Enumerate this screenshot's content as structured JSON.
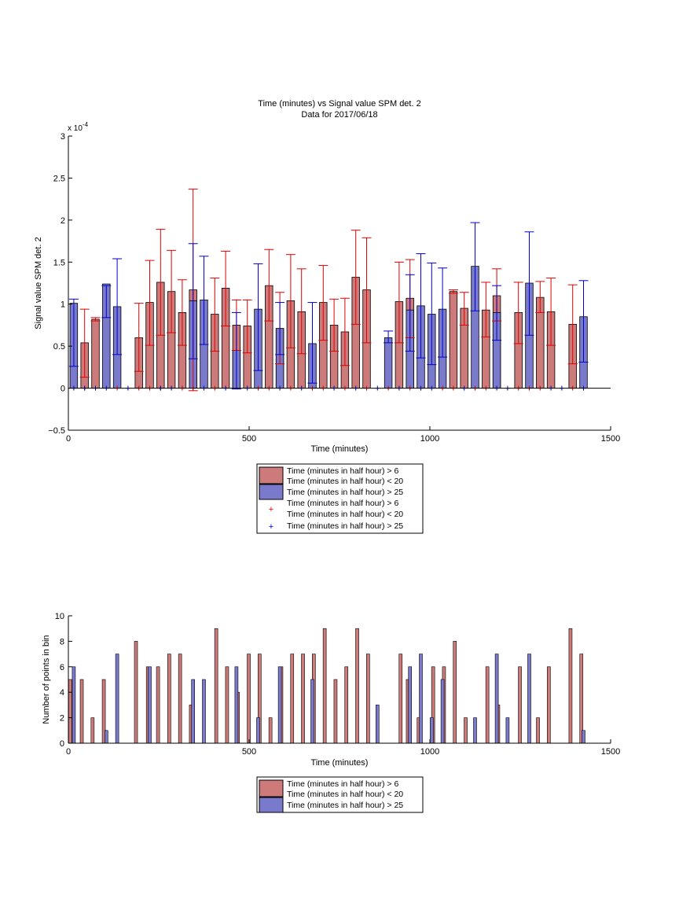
{
  "colors": {
    "red_bar": "#CC7A7A",
    "blue_bar": "#7A7ACC",
    "red_err": "#E00000",
    "blue_err": "#0000CC",
    "axis": "#000000"
  },
  "chart_data": [
    {
      "type": "bar",
      "title": "Time (minutes) vs Signal value SPM det. 2",
      "subtitle": "Data for 2017/06/18",
      "xlabel": "Time (minutes)",
      "ylabel": "Signal value SPM det. 2",
      "xlim": [
        0,
        1500
      ],
      "ylim": [
        -0.5,
        3
      ],
      "y_exponent_label": "x 10",
      "y_exponent_power": "-4",
      "xticks": [
        "0",
        "500",
        "1000",
        "1500"
      ],
      "yticks": [
        "−0.5",
        "0",
        "0.5",
        "1",
        "1.5",
        "2",
        "2.5",
        "3"
      ],
      "grid": false,
      "legend_position": "below",
      "legend": [
        {
          "symbol": "bar",
          "color": "red",
          "label": [
            "Time (minutes in half hour) > 6",
            "Time (minutes in half hour) < 20"
          ]
        },
        {
          "symbol": "bar",
          "color": "blue",
          "label": [
            "Time (minutes in half hour) > 25"
          ]
        },
        {
          "symbol": "plus",
          "color": "red",
          "label": [
            "Time (minutes in half hour) > 6",
            "Time (minutes in half hour) < 20"
          ]
        },
        {
          "symbol": "plus",
          "color": "blue",
          "label": [
            "Time (minutes in half hour) > 25"
          ]
        }
      ],
      "series": [
        {
          "color": "red",
          "x": [
            45,
            75,
            195,
            225,
            255,
            285,
            315,
            345,
            405,
            435,
            465,
            495,
            555,
            585,
            615,
            645,
            705,
            735,
            765,
            795,
            825,
            915,
            945,
            1065,
            1095,
            1155,
            1185,
            1245,
            1305,
            1335,
            1395
          ],
          "values": [
            0.54,
            0.82,
            0.6,
            1.02,
            1.26,
            1.15,
            0.9,
            1.17,
            0.88,
            1.19,
            0.75,
            0.74,
            1.22,
            0.71,
            1.04,
            0.91,
            1.02,
            0.75,
            0.67,
            1.32,
            1.17,
            1.03,
            1.07,
            1.15,
            0.95,
            0.93,
            1.1,
            0.9,
            1.08,
            0.91,
            0.76
          ],
          "err_low": [
            0.13,
            0.8,
            0.2,
            0.51,
            0.63,
            0.66,
            0.51,
            -0.03,
            0.44,
            0.74,
            0.45,
            0.42,
            0.8,
            0.29,
            0.48,
            0.41,
            0.57,
            0.44,
            0.27,
            0.76,
            0.54,
            0.54,
            0.6,
            1.13,
            0.75,
            0.61,
            0.8,
            0.53,
            0.9,
            0.51,
            0.29
          ],
          "err_high": [
            0.94,
            0.84,
            1.01,
            1.52,
            1.89,
            1.64,
            1.29,
            2.37,
            1.31,
            1.63,
            1.05,
            1.05,
            1.65,
            1.14,
            1.59,
            1.42,
            1.46,
            1.06,
            1.07,
            1.88,
            1.79,
            1.5,
            1.53,
            1.17,
            1.14,
            1.26,
            1.42,
            1.26,
            1.27,
            1.31,
            1.23
          ]
        },
        {
          "color": "blue",
          "x": [
            15,
            105,
            135,
            375,
            525,
            885,
            975,
            1005,
            1035,
            1125,
            1185,
            1275,
            1425
          ],
          "values": [
            1.01,
            1.24,
            0.97,
            1.05,
            0.94,
            0.6,
            0.98,
            0.88,
            0.94,
            1.45,
            0.9,
            1.25,
            0.85
          ],
          "err_low": [
            0.26,
            0.84,
            0.4,
            0.52,
            0.21,
            0.54,
            0.36,
            0.28,
            0.37,
            0.92,
            0.57,
            0.63,
            0.31
          ],
          "err_high": [
            1.06,
            1.22,
            1.54,
            1.57,
            1.48,
            0.68,
            1.6,
            1.49,
            1.43,
            1.97,
            1.22,
            1.86,
            1.28
          ]
        }
      ],
      "extra_blue_bars": [
        {
          "x": 345,
          "value": 1.04,
          "err_low": 0.35,
          "err_high": 1.72
        },
        {
          "x": 465,
          "value": 0.45,
          "err_low": -0.01,
          "err_high": 0.9
        },
        {
          "x": 585,
          "value": 0.71,
          "err_low": 0.4,
          "err_high": 1.02
        },
        {
          "x": 675,
          "value": 0.53,
          "err_low": 0.06,
          "err_high": 1.02
        },
        {
          "x": 945,
          "value": 0.93,
          "err_low": 0.44,
          "err_high": 1.35
        }
      ],
      "zero_markers": {
        "red_x": [
          45,
          135,
          195,
          225,
          255,
          315,
          345,
          405,
          525,
          555,
          615,
          675,
          705,
          765,
          825,
          885,
          945,
          1035,
          1065,
          1125,
          1155,
          1245,
          1275,
          1305,
          1395
        ],
        "blue_x": [
          15,
          45,
          75,
          105,
          165,
          255,
          285,
          375,
          435,
          495,
          585,
          645,
          735,
          795,
          855,
          915,
          975,
          1005,
          1095,
          1185,
          1215,
          1335,
          1365,
          1425
        ]
      }
    },
    {
      "type": "bar",
      "xlabel": "Time (minutes)",
      "ylabel": "Number of points in bin",
      "xlim": [
        0,
        1500
      ],
      "ylim": [
        0,
        10
      ],
      "xticks": [
        "0",
        "500",
        "1000",
        "1500"
      ],
      "yticks": [
        "0",
        "2",
        "4",
        "6",
        "8",
        "10"
      ],
      "grid": false,
      "legend_position": "below",
      "legend": [
        {
          "symbol": "bar",
          "color": "red",
          "label": [
            "Time (minutes in half hour) > 6",
            "Time (minutes in half hour) < 20"
          ]
        },
        {
          "symbol": "bar",
          "color": "blue",
          "label": [
            "Time (minutes in half hour) > 25"
          ]
        }
      ],
      "series": [
        {
          "color": "red",
          "x": [
            5,
            37,
            67,
            98,
            187,
            220,
            248,
            279,
            309,
            339,
            409,
            439,
            469,
            499,
            529,
            559,
            589,
            619,
            649,
            679,
            709,
            739,
            769,
            799,
            829,
            919,
            939,
            969,
            1009,
            1039,
            1069,
            1099,
            1159,
            1189,
            1249,
            1299,
            1329,
            1389,
            1419
          ],
          "values": [
            5,
            5,
            2,
            5,
            8,
            6,
            6,
            7,
            7,
            3,
            9,
            6,
            4,
            7,
            7,
            2,
            6,
            7,
            7,
            7,
            9,
            5,
            6,
            9,
            7,
            7,
            5,
            2,
            6,
            6,
            8,
            2,
            6,
            3,
            6,
            2,
            6,
            9,
            7
          ]
        },
        {
          "color": "blue",
          "x": [
            15,
            105,
            135,
            225,
            345,
            375,
            465,
            525,
            585,
            675,
            855,
            945,
            975,
            1005,
            1035,
            1125,
            1185,
            1215,
            1275,
            1425
          ],
          "values": [
            6,
            1,
            7,
            6,
            5,
            5,
            6,
            2,
            6,
            5,
            3,
            6,
            7,
            2,
            5,
            2,
            7,
            2,
            7,
            1
          ]
        }
      ]
    }
  ]
}
